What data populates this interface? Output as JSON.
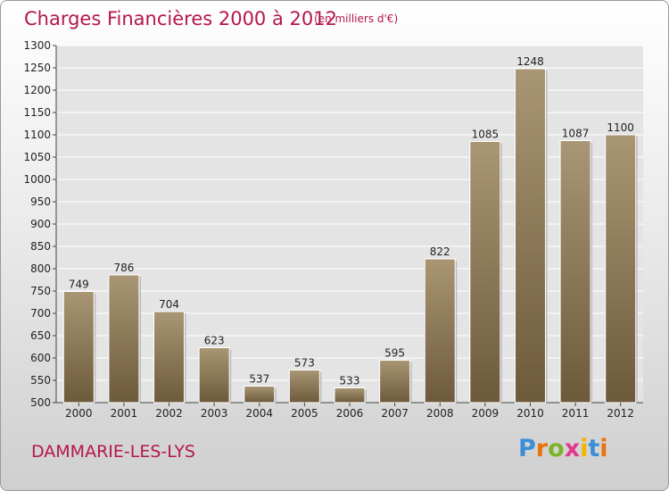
{
  "header": {
    "title": "Charges Financières 2000 à 2012",
    "subtitle": "(en milliers d'€)"
  },
  "footer": {
    "commune": "DAMMARIE-LES-LYS",
    "brand": "Proxiti",
    "brand_colors": [
      "#3a8fd6",
      "#e8720c",
      "#7bb42c",
      "#e23a8b",
      "#f2b600",
      "#3a8fd6",
      "#e8720c"
    ]
  },
  "colors": {
    "title": "#b5164d",
    "bar_top": "#a99674",
    "bar_bottom": "#6d5a3b",
    "grid": "#ffffff"
  },
  "chart_data": {
    "type": "bar",
    "title": "Charges Financières 2000 à 2012",
    "subtitle": "(en milliers d'€)",
    "categories": [
      "2000",
      "2001",
      "2002",
      "2003",
      "2004",
      "2005",
      "2006",
      "2007",
      "2008",
      "2009",
      "2010",
      "2011",
      "2012"
    ],
    "values": [
      749,
      786,
      704,
      623,
      537,
      573,
      533,
      595,
      822,
      1085,
      1248,
      1087,
      1100
    ],
    "ylim": [
      500,
      1300
    ],
    "yticks": [
      500,
      550,
      600,
      650,
      700,
      750,
      800,
      850,
      900,
      950,
      1000,
      1050,
      1100,
      1150,
      1200,
      1250,
      1300
    ],
    "grid": true,
    "xlabel": "",
    "ylabel": ""
  }
}
